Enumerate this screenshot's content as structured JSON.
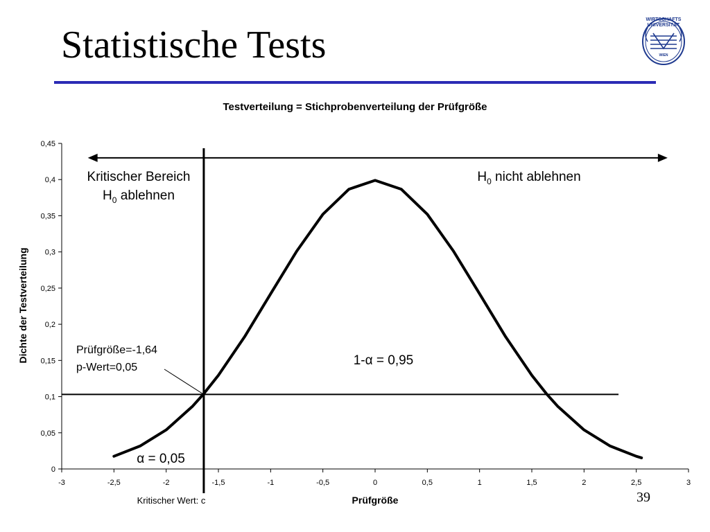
{
  "slide": {
    "title": "Statistische Tests",
    "page_number": "39",
    "logo": {
      "line1": "WIRTSCHAFTS",
      "line2": "UNIVERSITÄT",
      "line3": "WIEN",
      "color": "#1f3a8f"
    },
    "rule_color": "#2b2bb5"
  },
  "chart_data": {
    "type": "line",
    "title": "Testverteilung = Stichprobenverteilung der Prüfgröße",
    "xlabel": "Prüfgröße",
    "ylabel": "Dichte der Testverteilung",
    "xlim": [
      -3,
      3
    ],
    "ylim": [
      0,
      0.45
    ],
    "x_ticks": [
      -3,
      -2.5,
      -2,
      -1.5,
      -1,
      -0.5,
      0,
      0.5,
      1,
      1.5,
      2,
      2.5,
      3
    ],
    "x_tick_labels": [
      "-3",
      "-2,5",
      "-2",
      "-1,5",
      "-1",
      "-0,5",
      "0",
      "0,5",
      "1",
      "1,5",
      "2",
      "2,5",
      "3"
    ],
    "y_ticks": [
      0,
      0.05,
      0.1,
      0.15,
      0.2,
      0.25,
      0.3,
      0.35,
      0.4,
      0.45
    ],
    "y_tick_labels": [
      "0",
      "0,05",
      "0,1",
      "0,15",
      "0,2",
      "0,25",
      "0,3",
      "0,35",
      "0,4",
      "0,45"
    ],
    "grid": false,
    "legend": "none",
    "series": [
      {
        "x": [
          -2.5,
          -2.25,
          -2.0,
          -1.75,
          -1.64,
          -1.5,
          -1.25,
          -1.0,
          -0.75,
          -0.5,
          -0.25,
          0.0,
          0.25,
          0.5,
          0.75,
          1.0,
          1.25,
          1.5,
          1.64,
          1.75,
          2.0,
          2.25,
          2.5,
          2.55
        ],
        "y": [
          0.0175,
          0.0317,
          0.054,
          0.0863,
          0.104,
          0.1295,
          0.1826,
          0.242,
          0.3011,
          0.3521,
          0.3867,
          0.3989,
          0.3867,
          0.3521,
          0.3011,
          0.242,
          0.1826,
          0.1295,
          0.104,
          0.0863,
          0.054,
          0.0317,
          0.0175,
          0.0154
        ]
      }
    ],
    "critical_value_x": -1.64,
    "critical_density": 0.103,
    "horizontal_line": {
      "y": 0.103,
      "x_from": -3,
      "x_to": 2.33
    },
    "range_arrow": {
      "y": 0.43,
      "x_from": -2.75,
      "x_to": 2.8
    },
    "annotations": {
      "critical_region": [
        "Kritischer Bereich",
        "H",
        "0",
        " ablehnen"
      ],
      "not_reject": [
        "H",
        "0",
        " nicht ablehnen"
      ],
      "test_stat_line1": "Prüfgröße=-1,64",
      "test_stat_line2": "p-Wert=0,05",
      "one_minus_alpha": "1-α = 0,95",
      "alpha": "α = 0,05",
      "critical_value_label": "Kritischer Wert: c"
    }
  }
}
